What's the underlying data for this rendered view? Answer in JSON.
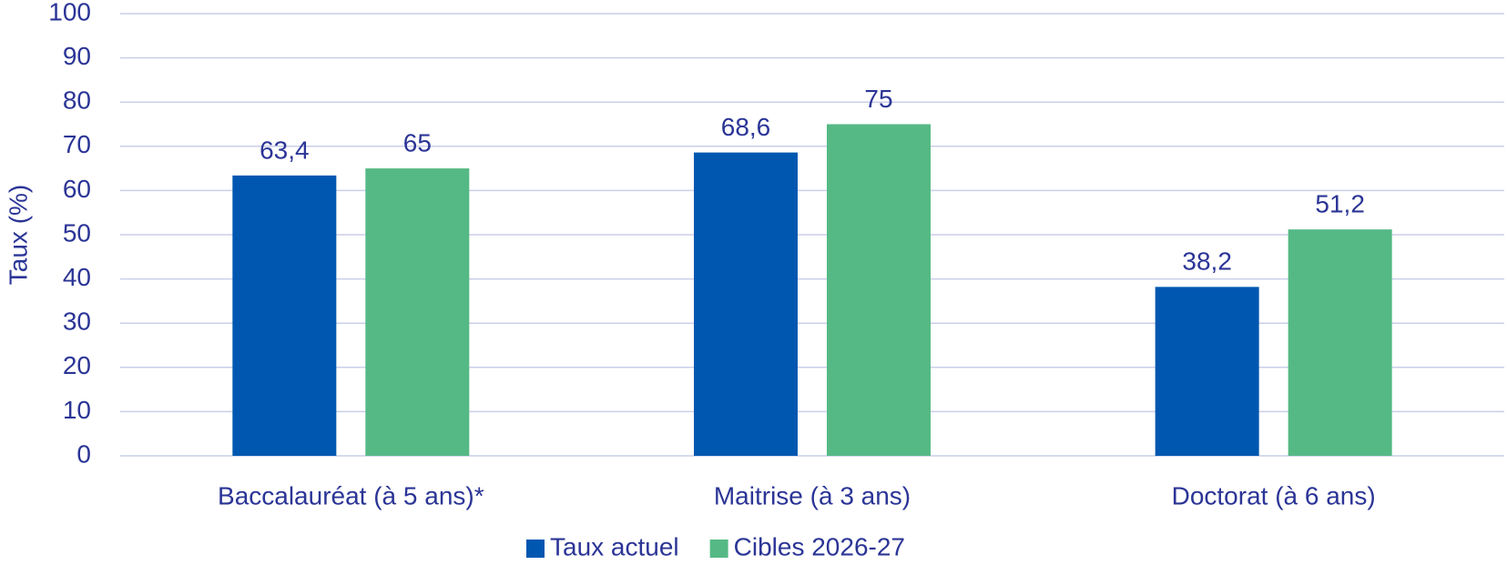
{
  "chart_data": {
    "type": "bar",
    "y_label": "Taux (%)",
    "categories": [
      "Baccalauréat (à 5 ans)*",
      "Maitrise (à 3 ans)",
      "Doctorat (à 6 ans)"
    ],
    "series": [
      {
        "name": "Taux actuel",
        "color": "#0057b0",
        "values": [
          63.4,
          68.6,
          38.2
        ],
        "value_labels": [
          "63,4",
          "68,6",
          "38,2"
        ]
      },
      {
        "name": "Cibles 2026-27",
        "color": "#55b985",
        "values": [
          65,
          75,
          51.2
        ],
        "value_labels": [
          "65",
          "75",
          "51,2"
        ]
      }
    ],
    "ylim": [
      0,
      100
    ],
    "yticks": [
      0,
      10,
      20,
      30,
      40,
      50,
      60,
      70,
      80,
      90,
      100
    ],
    "grid": true,
    "legend": "bottom"
  }
}
